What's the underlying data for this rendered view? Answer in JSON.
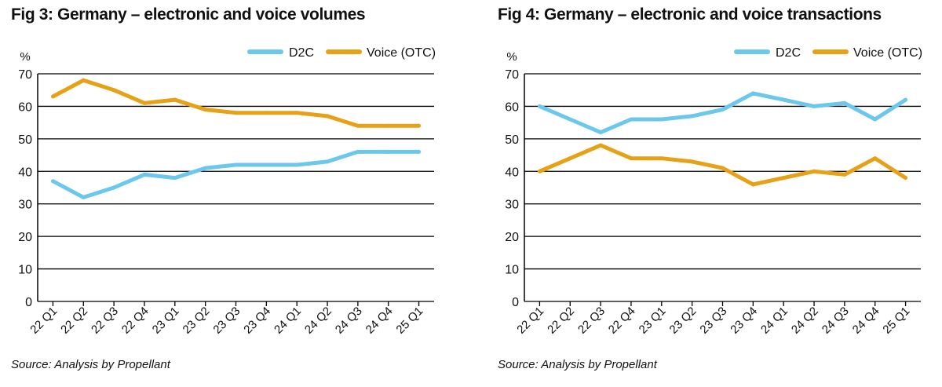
{
  "colors": {
    "d2c": "#6cc7ec",
    "voice": "#e6a117",
    "grid": "#000000"
  },
  "chart_data": [
    {
      "type": "line",
      "title": "Fig 3: Germany – electronic and voice volumes",
      "ylabel": "%",
      "xlabel": "",
      "ylim": [
        0,
        70
      ],
      "yticks": [
        0,
        10,
        20,
        30,
        40,
        50,
        60,
        70
      ],
      "categories": [
        "22 Q1",
        "22 Q2",
        "22 Q3",
        "22 Q4",
        "23 Q1",
        "23 Q2",
        "23 Q3",
        "23 Q4",
        "24 Q1",
        "24 Q2",
        "24 Q3",
        "24 Q4",
        "25 Q1"
      ],
      "series": [
        {
          "name": "D2C",
          "values": [
            37,
            32,
            35,
            39,
            38,
            41,
            42,
            42,
            42,
            43,
            46,
            46,
            46
          ]
        },
        {
          "name": "Voice (OTC)",
          "values": [
            63,
            68,
            65,
            61,
            62,
            59,
            58,
            58,
            58,
            57,
            54,
            54,
            54
          ]
        }
      ],
      "legend": "top-right",
      "source": "Source: Analysis by Propellant"
    },
    {
      "type": "line",
      "title": "Fig 4: Germany – electronic and voice transactions",
      "ylabel": "%",
      "xlabel": "",
      "ylim": [
        0,
        70
      ],
      "yticks": [
        0,
        10,
        20,
        30,
        40,
        50,
        60,
        70
      ],
      "categories": [
        "22 Q1",
        "22 Q2",
        "22 Q3",
        "22 Q4",
        "23 Q1",
        "23 Q2",
        "23 Q3",
        "23 Q4",
        "24 Q1",
        "24 Q2",
        "24 Q3",
        "24 Q4",
        "25 Q1"
      ],
      "series": [
        {
          "name": "D2C",
          "values": [
            60,
            56,
            52,
            56,
            56,
            57,
            59,
            64,
            62,
            60,
            61,
            56,
            62
          ]
        },
        {
          "name": "Voice (OTC)",
          "values": [
            40,
            44,
            48,
            44,
            44,
            43,
            41,
            36,
            38,
            40,
            39,
            44,
            38
          ]
        }
      ],
      "legend": "top-right",
      "source": "Source: Analysis by Propellant"
    }
  ]
}
